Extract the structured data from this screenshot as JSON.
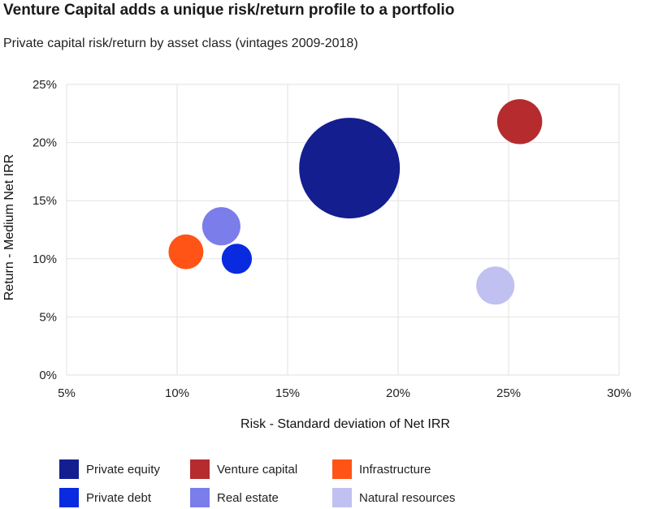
{
  "chart_data": {
    "type": "bubble",
    "title": "Venture Capital adds a unique risk/return profile to a portfolio",
    "subtitle": "Private capital risk/return by asset class (vintages 2009-2018)",
    "xlabel": "Risk - Standard deviation of Net IRR",
    "ylabel": "Return - Medium Net IRR",
    "xlim": [
      5,
      30
    ],
    "ylim": [
      0,
      25
    ],
    "x_ticks": [
      5,
      10,
      15,
      20,
      25,
      30
    ],
    "y_ticks": [
      0,
      5,
      10,
      15,
      20,
      25
    ],
    "tick_suffix": "%",
    "grid": true,
    "legend_position": "bottom",
    "series": [
      {
        "name": "Private equity",
        "x": 17.8,
        "y": 17.8,
        "size": 5.0,
        "color": "#141e8f"
      },
      {
        "name": "Venture capital",
        "x": 25.5,
        "y": 21.8,
        "size": 1.0,
        "color": "#b52b2e"
      },
      {
        "name": "Infrastructure",
        "x": 10.4,
        "y": 10.6,
        "size": 0.6,
        "color": "#ff5416"
      },
      {
        "name": "Private debt",
        "x": 12.7,
        "y": 10.0,
        "size": 0.45,
        "color": "#0a2ae0"
      },
      {
        "name": "Real estate",
        "x": 12.0,
        "y": 12.8,
        "size": 0.72,
        "color": "#7b7dea"
      },
      {
        "name": "Natural resources",
        "x": 24.4,
        "y": 7.7,
        "size": 0.72,
        "color": "#c0c1f1"
      }
    ]
  }
}
